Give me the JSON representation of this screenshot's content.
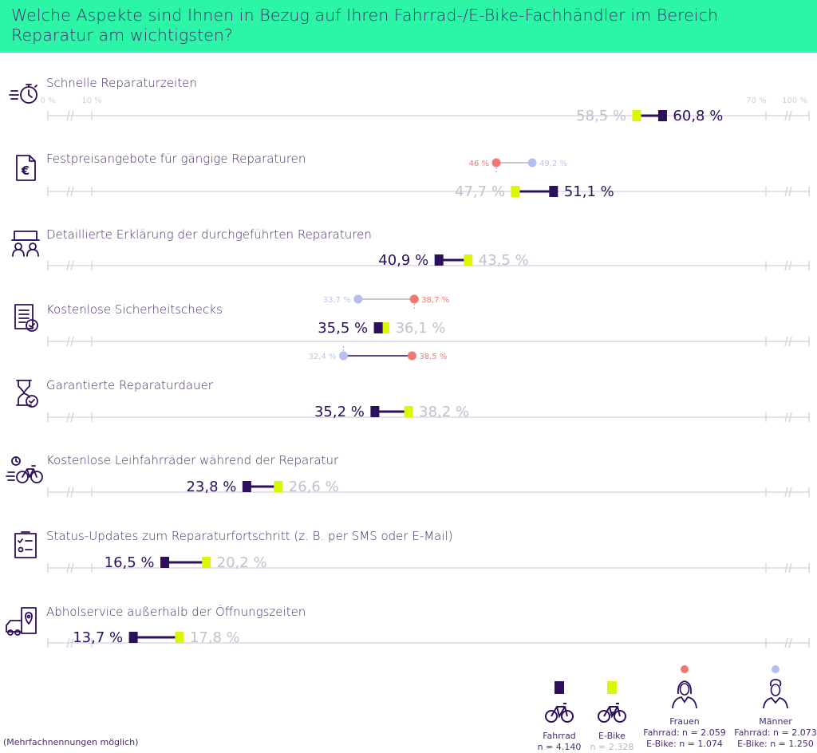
{
  "title": "Welche Aspekte sind Ihnen in Bezug auf Ihren Fahrrad-/E-Bike-Fachhändler im Bereich Reparatur am wichtigsten?",
  "footnote": "(Mehrfachnennungen möglich)",
  "colors": {
    "header_bg": "#2cf5a8",
    "fahrrad": "#2d0f5c",
    "ebike": "#ddf700",
    "frauen": "#f07870",
    "maenner": "#b4bff0",
    "axis": "#e4e1ec",
    "text": "#4a2b6e",
    "muted": "#c3bfcc"
  },
  "chart_data": {
    "type": "dumbbell",
    "unit": "%",
    "axis_ticks": [
      "0 %",
      "10 %",
      "70 %",
      "100 %"
    ],
    "axis_break_ranges": [
      [
        0,
        10
      ],
      [
        70,
        100
      ]
    ],
    "xlim": [
      10,
      70
    ],
    "series": [
      {
        "key": "fahrrad",
        "name": "Fahrrad"
      },
      {
        "key": "ebike",
        "name": "E-Bike"
      },
      {
        "key": "frauen",
        "name": "Frauen"
      },
      {
        "key": "maenner",
        "name": "Männer"
      }
    ],
    "categories": [
      {
        "label": "Schnelle Reparaturzeiten",
        "icon": "stopwatch-icon",
        "fahrrad": 60.8,
        "fahrrad_label": "60,8 %",
        "ebike": 58.5,
        "ebike_label": "58,5 %"
      },
      {
        "label": "Festpreisangebote für gängige Reparaturen",
        "icon": "price-document-icon",
        "fahrrad": 51.1,
        "fahrrad_label": "51,1 %",
        "ebike": 47.7,
        "ebike_label": "47,7 %",
        "gender_above": {
          "frauen": 46.0,
          "frauen_label": "46 %",
          "maenner": 49.2,
          "maenner_label": "49,2 %"
        }
      },
      {
        "label": "Detaillierte Erklärung der durchgeführten Reparaturen",
        "icon": "consultation-icon",
        "fahrrad": 40.9,
        "fahrrad_label": "40,9 %",
        "ebike": 43.5,
        "ebike_label": "43,5 %"
      },
      {
        "label": "Kostenlose Sicherheitschecks",
        "icon": "checklist-icon",
        "fahrrad": 35.5,
        "fahrrad_label": "35,5 %",
        "ebike": 36.1,
        "ebike_label": "36,1 %",
        "gender_above": {
          "frauen": 38.7,
          "frauen_label": "38,7 %",
          "maenner": 33.7,
          "maenner_label": "33,7 %"
        },
        "gender_below": {
          "frauen": 38.5,
          "frauen_label": "38,5 %",
          "maenner": 32.4,
          "maenner_label": "32,4 %"
        }
      },
      {
        "label": "Garantierte Reparaturdauer",
        "icon": "hourglass-icon",
        "fahrrad": 35.2,
        "fahrrad_label": "35,2 %",
        "ebike": 38.2,
        "ebike_label": "38,2 %"
      },
      {
        "label": "Kostenlose Leihfahrräder während der Reparatur",
        "icon": "bike-icon",
        "fahrrad": 23.8,
        "fahrrad_label": "23,8 %",
        "ebike": 26.6,
        "ebike_label": "26,6 %"
      },
      {
        "label": "Status-Updates zum Reparaturfortschritt (z. B. per SMS oder E-Mail)",
        "icon": "status-list-icon",
        "fahrrad": 16.5,
        "fahrrad_label": "16,5 %",
        "ebike": 20.2,
        "ebike_label": "20,2 %"
      },
      {
        "label": "Abholservice außerhalb der Öffnungszeiten",
        "icon": "pickup-van-icon",
        "fahrrad": 13.7,
        "fahrrad_label": "13,7 %",
        "ebike": 17.8,
        "ebike_label": "17,8 %"
      }
    ]
  },
  "legend": {
    "fahrrad": {
      "name": "Fahrrad",
      "n": "n = 4.140"
    },
    "ebike": {
      "name": "E-Bike",
      "n": "n = 2.328"
    },
    "frauen": {
      "name": "Frauen",
      "n1": "Fahrrad: n = 2.059",
      "n2": "E-Bike: n = 1.074"
    },
    "maenner": {
      "name": "Männer",
      "n1": "Fahrrad: n = 2.073",
      "n2": "E-Bike: n = 1.250"
    }
  }
}
